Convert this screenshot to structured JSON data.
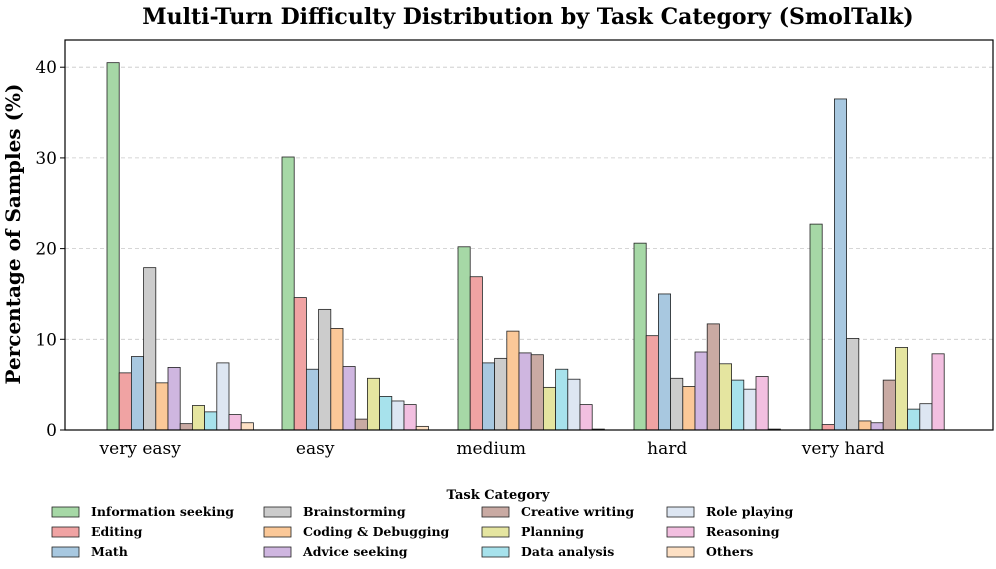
{
  "chart_data": {
    "type": "bar",
    "title": "Multi-Turn Difficulty Distribution by Task Category (SmolTalk)",
    "xlabel": "",
    "ylabel": "Percentage of Samples (%)",
    "ylim": [
      0,
      43
    ],
    "yticks": [
      0,
      10,
      20,
      30,
      40
    ],
    "grid": "horizontal dashed",
    "categories": [
      "very easy",
      "easy",
      "medium",
      "hard",
      "very hard"
    ],
    "legend_title": "Task Category",
    "legend_position": "bottom",
    "series": [
      {
        "name": "Information seeking",
        "color": "#a6d8a6",
        "values": [
          40.5,
          30.1,
          20.2,
          20.6,
          22.7
        ]
      },
      {
        "name": "Editing",
        "color": "#f0a3a3",
        "values": [
          6.3,
          14.6,
          16.9,
          10.4,
          0.6
        ]
      },
      {
        "name": "Math",
        "color": "#a8c8e0",
        "values": [
          8.1,
          6.7,
          7.4,
          15.0,
          36.5
        ]
      },
      {
        "name": "Brainstorming",
        "color": "#cccccc",
        "values": [
          17.9,
          13.3,
          7.9,
          5.7,
          10.1
        ]
      },
      {
        "name": "Coding & Debugging",
        "color": "#fbc898",
        "values": [
          5.2,
          11.2,
          10.9,
          4.8,
          1.0
        ]
      },
      {
        "name": "Advice seeking",
        "color": "#cfb6e0",
        "values": [
          6.9,
          7.0,
          8.5,
          8.6,
          0.8
        ]
      },
      {
        "name": "Creative writing",
        "color": "#c9aaa3",
        "values": [
          0.7,
          1.2,
          8.3,
          11.7,
          5.5
        ]
      },
      {
        "name": "Planning",
        "color": "#e5e5a0",
        "values": [
          2.7,
          5.7,
          4.7,
          7.3,
          9.1
        ]
      },
      {
        "name": "Data analysis",
        "color": "#a7e2ec",
        "values": [
          2.0,
          3.7,
          6.7,
          5.5,
          2.3
        ]
      },
      {
        "name": "Role playing",
        "color": "#dde6f2",
        "values": [
          7.4,
          3.2,
          5.6,
          4.5,
          2.9
        ]
      },
      {
        "name": "Reasoning",
        "color": "#f2bfe0",
        "values": [
          1.7,
          2.8,
          2.8,
          5.9,
          8.4
        ]
      },
      {
        "name": "Others",
        "color": "#fde0c4",
        "values": [
          0.8,
          0.4,
          0.1,
          0.1,
          0.0
        ]
      }
    ]
  }
}
